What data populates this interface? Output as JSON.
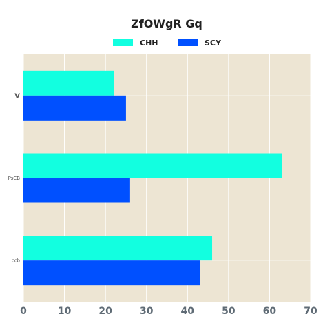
{
  "chart_data": {
    "type": "bar",
    "orientation": "horizontal",
    "title": "ZfOWgR Gq",
    "categories": [
      "V",
      "PsCB",
      "ccb"
    ],
    "series": [
      {
        "name": "CHH",
        "color": "#12ffe0",
        "values": [
          22,
          63,
          46
        ]
      },
      {
        "name": "SCY",
        "color": "#0050ff",
        "values": [
          25,
          26,
          43
        ]
      }
    ],
    "xlim": [
      0,
      70
    ],
    "xticks": [
      "0",
      "10",
      "20",
      "30",
      "40",
      "50",
      "60",
      "70"
    ],
    "grid": true,
    "legend_position": "top-center",
    "plot_background": "#ede5d3"
  }
}
